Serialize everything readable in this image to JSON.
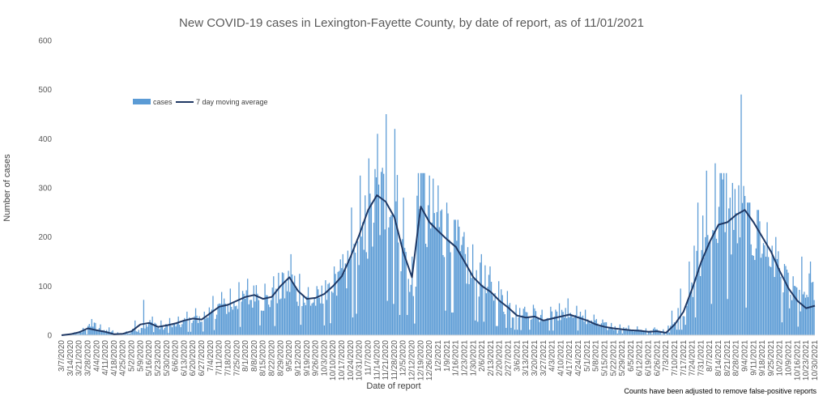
{
  "chart_data": {
    "type": "bar",
    "title": "New COVID-19 cases in Lexington-Fayette County, by date of report, as of 11/01/2021",
    "xlabel": "Date of report",
    "ylabel": "Number of cases",
    "ylim": [
      0,
      600
    ],
    "yticks": [
      0,
      100,
      200,
      300,
      400,
      500,
      600
    ],
    "grid": false,
    "legend_position": "top-left",
    "footnote": "Counts have been adjusted to remove false-positive reports",
    "x_tick_labels": [
      "3/7/2020",
      "3/14/2020",
      "3/21/2020",
      "3/28/2020",
      "4/4/2020",
      "4/11/2020",
      "4/18/2020",
      "4/25/2020",
      "5/2/2020",
      "5/9/2020",
      "5/16/2020",
      "5/23/2020",
      "5/30/2020",
      "6/6/2020",
      "6/13/2020",
      "6/20/2020",
      "6/27/2020",
      "7/4/2020",
      "7/11/2020",
      "7/18/2020",
      "7/25/2020",
      "8/1/2020",
      "8/8/2020",
      "8/15/2020",
      "8/22/2020",
      "8/29/2020",
      "9/5/2020",
      "9/12/2020",
      "9/19/2020",
      "9/26/2020",
      "10/3/2020",
      "10/10/2020",
      "10/17/2020",
      "10/24/2020",
      "10/31/2020",
      "11/7/2020",
      "11/14/2020",
      "11/21/2020",
      "11/28/2020",
      "12/5/2020",
      "12/12/2020",
      "12/19/2020",
      "12/26/2020",
      "1/2/2021",
      "1/9/2021",
      "1/16/2021",
      "1/23/2021",
      "1/30/2021",
      "2/6/2021",
      "2/13/2021",
      "2/20/2021",
      "2/27/2021",
      "3/6/2021",
      "3/13/2021",
      "3/20/2021",
      "3/27/2021",
      "4/3/2021",
      "4/10/2021",
      "4/17/2021",
      "4/24/2021",
      "5/1/2021",
      "5/8/2021",
      "5/15/2021",
      "5/22/2021",
      "5/29/2021",
      "6/5/2021",
      "6/12/2021",
      "6/19/2021",
      "6/26/2021",
      "7/3/2021",
      "7/10/2021",
      "7/17/2021",
      "7/24/2021",
      "7/31/2021",
      "8/7/2021",
      "8/14/2021",
      "8/21/2021",
      "8/28/2021",
      "9/4/2021",
      "9/11/2021",
      "9/18/2021",
      "9/25/2021",
      "10/2/2021",
      "10/9/2021",
      "10/16/2021",
      "10/23/2021",
      "10/30/2021"
    ],
    "series": [
      {
        "name": "cases",
        "type": "bar",
        "color": "#5b9bd5",
        "weekly_values": [
          1,
          3,
          8,
          20,
          12,
          8,
          3,
          4,
          10,
          18,
          25,
          15,
          18,
          22,
          28,
          32,
          30,
          42,
          58,
          62,
          68,
          75,
          80,
          72,
          75,
          95,
          108,
          85,
          70,
          72,
          80,
          98,
          115,
          145,
          175,
          225,
          272,
          280,
          255,
          165,
          95,
          280,
          240,
          225,
          200,
          185,
          150,
          120,
          110,
          92,
          75,
          60,
          45,
          42,
          45,
          35,
          38,
          40,
          42,
          38,
          32,
          25,
          20,
          15,
          14,
          12,
          10,
          8,
          10,
          6,
          22,
          45,
          85,
          145,
          190,
          255,
          295,
          235,
          245,
          225,
          205,
          175,
          140,
          105,
          75,
          70,
          95
        ],
        "weekly_peaks": [
          2,
          6,
          15,
          33,
          22,
          16,
          6,
          8,
          30,
          72,
          38,
          30,
          35,
          38,
          48,
          55,
          48,
          80,
          88,
          95,
          108,
          115,
          102,
          105,
          120,
          128,
          165,
          125,
          98,
          100,
          112,
          140,
          165,
          260,
          325,
          360,
          410,
          450,
          420,
          280,
          160,
          330,
          325,
          305,
          270,
          235,
          210,
          185,
          165,
          140,
          110,
          90,
          62,
          58,
          62,
          52,
          58,
          65,
          75,
          60,
          52,
          42,
          32,
          25,
          22,
          20,
          18,
          14,
          16,
          12,
          50,
          95,
          150,
          270,
          335,
          350,
          330,
          310,
          490,
          270,
          255,
          230,
          200,
          145,
          120,
          160,
          150
        ]
      },
      {
        "name": "7 day moving average",
        "type": "line",
        "color": "#1f3864",
        "values": [
          0,
          2,
          6,
          14,
          10,
          7,
          2,
          3,
          8,
          22,
          25,
          17,
          20,
          24,
          30,
          34,
          32,
          45,
          58,
          62,
          70,
          78,
          82,
          74,
          78,
          100,
          118,
          90,
          74,
          76,
          84,
          100,
          120,
          160,
          205,
          255,
          285,
          272,
          240,
          170,
          118,
          262,
          230,
          212,
          195,
          180,
          150,
          118,
          100,
          88,
          70,
          56,
          40,
          36,
          38,
          30,
          34,
          38,
          42,
          36,
          30,
          22,
          17,
          14,
          12,
          10,
          9,
          7,
          8,
          5,
          22,
          48,
          95,
          148,
          190,
          225,
          230,
          245,
          255,
          230,
          200,
          170,
          130,
          95,
          70,
          55,
          60
        ]
      }
    ]
  }
}
